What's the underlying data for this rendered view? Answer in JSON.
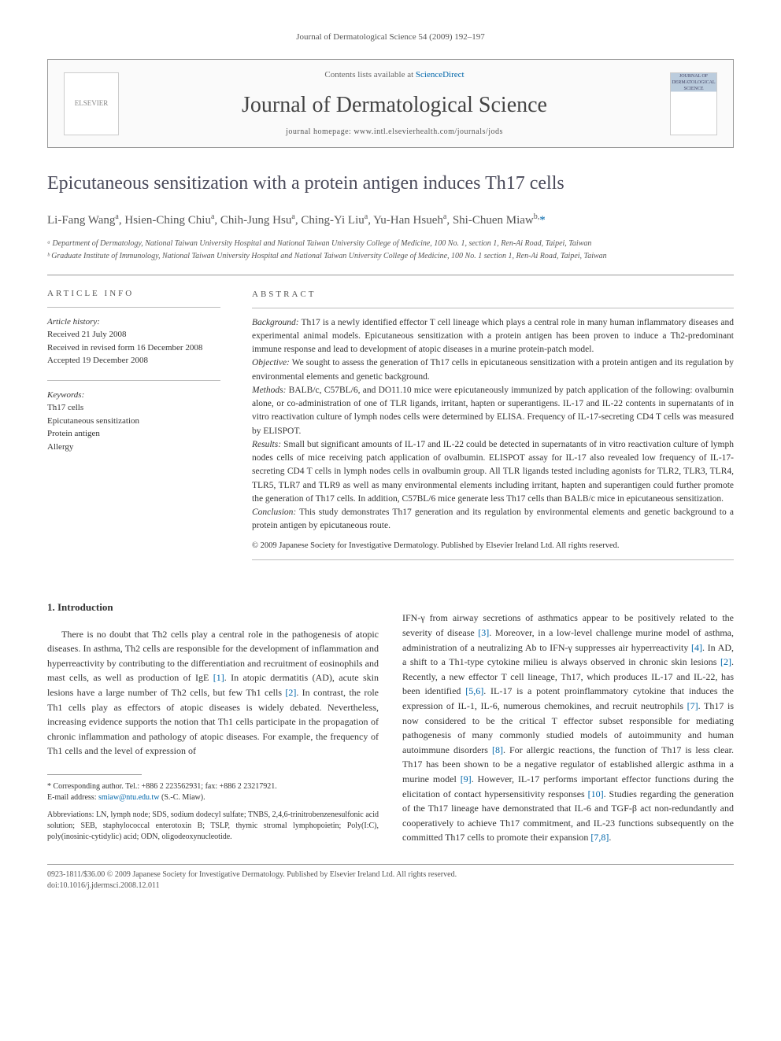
{
  "running_header": "Journal of Dermatological Science 54 (2009) 192–197",
  "masthead": {
    "elsevier_logo": "ELSEVIER",
    "contents_prefix": "Contents lists available at ",
    "contents_link": "ScienceDirect",
    "journal_name": "Journal of Dermatological Science",
    "homepage_prefix": "journal homepage: ",
    "homepage_url": "www.intl.elsevierhealth.com/journals/jods",
    "cover_alt": "JOURNAL OF DERMATOLOGICAL SCIENCE"
  },
  "title": "Epicutaneous sensitization with a protein antigen induces Th17 cells",
  "authors_html": "Li-Fang Wang<sup>a</sup>, Hsien-Ching Chiu<sup>a</sup>, Chih-Jung Hsu<sup>a</sup>, Ching-Yi Liu<sup>a</sup>, Yu-Han Hsueh<sup>a</sup>, Shi-Chuen Miaw<sup>b,</sup><span class='corr'>*</span>",
  "affiliations": [
    "ᵃ Department of Dermatology, National Taiwan University Hospital and National Taiwan University College of Medicine, 100 No. 1, section 1, Ren-Ai Road, Taipei, Taiwan",
    "ᵇ Graduate Institute of Immunology, National Taiwan University Hospital and National Taiwan University College of Medicine, 100 No. 1 section 1, Ren-Ai Road, Taipei, Taiwan"
  ],
  "article_info": {
    "heading": "ARTICLE INFO",
    "history_label": "Article history:",
    "history": [
      "Received 21 July 2008",
      "Received in revised form 16 December 2008",
      "Accepted 19 December 2008"
    ],
    "keywords_label": "Keywords:",
    "keywords": [
      "Th17 cells",
      "Epicutaneous sensitization",
      "Protein antigen",
      "Allergy"
    ]
  },
  "abstract": {
    "heading": "ABSTRACT",
    "sections": [
      {
        "label": "Background:",
        "text": "Th17 is a newly identified effector T cell lineage which plays a central role in many human inflammatory diseases and experimental animal models. Epicutaneous sensitization with a protein antigen has been proven to induce a Th2-predominant immune response and lead to development of atopic diseases in a murine protein-patch model."
      },
      {
        "label": "Objective:",
        "text": "We sought to assess the generation of Th17 cells in epicutaneous sensitization with a protein antigen and its regulation by environmental elements and genetic background."
      },
      {
        "label": "Methods:",
        "text": "BALB/c, C57BL/6, and DO11.10 mice were epicutaneously immunized by patch application of the following: ovalbumin alone, or co-administration of one of TLR ligands, irritant, hapten or superantigens. IL-17 and IL-22 contents in supernatants of in vitro reactivation culture of lymph nodes cells were determined by ELISA. Frequency of IL-17-secreting CD4 T cells was measured by ELISPOT."
      },
      {
        "label": "Results:",
        "text": "Small but significant amounts of IL-17 and IL-22 could be detected in supernatants of in vitro reactivation culture of lymph nodes cells of mice receiving patch application of ovalbumin. ELISPOT assay for IL-17 also revealed low frequency of IL-17-secreting CD4 T cells in lymph nodes cells in ovalbumin group. All TLR ligands tested including agonists for TLR2, TLR3, TLR4, TLR5, TLR7 and TLR9 as well as many environmental elements including irritant, hapten and superantigen could further promote the generation of Th17 cells. In addition, C57BL/6 mice generate less Th17 cells than BALB/c mice in epicutaneous sensitization."
      },
      {
        "label": "Conclusion:",
        "text": "This study demonstrates Th17 generation and its regulation by environmental elements and genetic background to a protein antigen by epicutaneous route."
      }
    ],
    "copyright": "© 2009 Japanese Society for Investigative Dermatology. Published by Elsevier Ireland Ltd. All rights reserved."
  },
  "intro": {
    "heading": "1. Introduction",
    "col_left": "There is no doubt that Th2 cells play a central role in the pathogenesis of atopic diseases. In asthma, Th2 cells are responsible for the development of inflammation and hyperreactivity by contributing to the differentiation and recruitment of eosinophils and mast cells, as well as production of IgE <span class='ref'>[1]</span>. In atopic dermatitis (AD), acute skin lesions have a large number of Th2 cells, but few Th1 cells <span class='ref'>[2]</span>. In contrast, the role Th1 cells play as effectors of atopic diseases is widely debated. Nevertheless, increasing evidence supports the notion that Th1 cells participate in the propagation of chronic inflammation and pathology of atopic diseases. For example, the frequency of Th1 cells and the level of expression of",
    "col_right": "IFN-γ from airway secretions of asthmatics appear to be positively related to the severity of disease <span class='ref'>[3]</span>. Moreover, in a low-level challenge murine model of asthma, administration of a neutralizing Ab to IFN-γ suppresses air hyperreactivity <span class='ref'>[4]</span>. In AD, a shift to a Th1-type cytokine milieu is always observed in chronic skin lesions <span class='ref'>[2]</span>. Recently, a new effector T cell lineage, Th17, which produces IL-17 and IL-22, has been identified <span class='ref'>[5,6]</span>. IL-17 is a potent proinflammatory cytokine that induces the expression of IL-1, IL-6, numerous chemokines, and recruit neutrophils <span class='ref'>[7]</span>. Th17 is now considered to be the critical T effector subset responsible for mediating pathogenesis of many commonly studied models of autoimmunity and human autoimmune disorders <span class='ref'>[8]</span>. For allergic reactions, the function of Th17 is less clear. Th17 has been shown to be a negative regulator of established allergic asthma in a murine model <span class='ref'>[9]</span>. However, IL-17 performs important effector functions during the elicitation of contact hypersensitivity responses <span class='ref'>[10]</span>. Studies regarding the generation of the Th17 lineage have demonstrated that IL-6 and TGF-β act non-redundantly and cooperatively to achieve Th17 commitment, and IL-23 functions subsequently on the committed Th17 cells to promote their expansion <span class='ref'>[7,8]</span>."
  },
  "corresponding": {
    "label": "* Corresponding author. Tel.: +886 2 223562931; fax: +886 2 23217921.",
    "email_label": "E-mail address:",
    "email": "smiaw@ntu.edu.tw",
    "email_who": "(S.-C. Miaw)."
  },
  "abbreviations": {
    "label": "Abbreviations:",
    "text": "LN, lymph node; SDS, sodium dodecyl sulfate; TNBS, 2,4,6-trinitrobenzenesulfonic acid solution; SEB, staphylococcal enterotoxin B; TSLP, thymic stromal lymphopoietin; Poly(I:C), poly(inosinic-cytidylic) acid; ODN, oligodeoxynucleotide."
  },
  "footer": {
    "line1": "0923-1811/$36.00 © 2009 Japanese Society for Investigative Dermatology. Published by Elsevier Ireland Ltd. All rights reserved.",
    "line2": "doi:10.1016/j.jdermsci.2008.12.011"
  }
}
